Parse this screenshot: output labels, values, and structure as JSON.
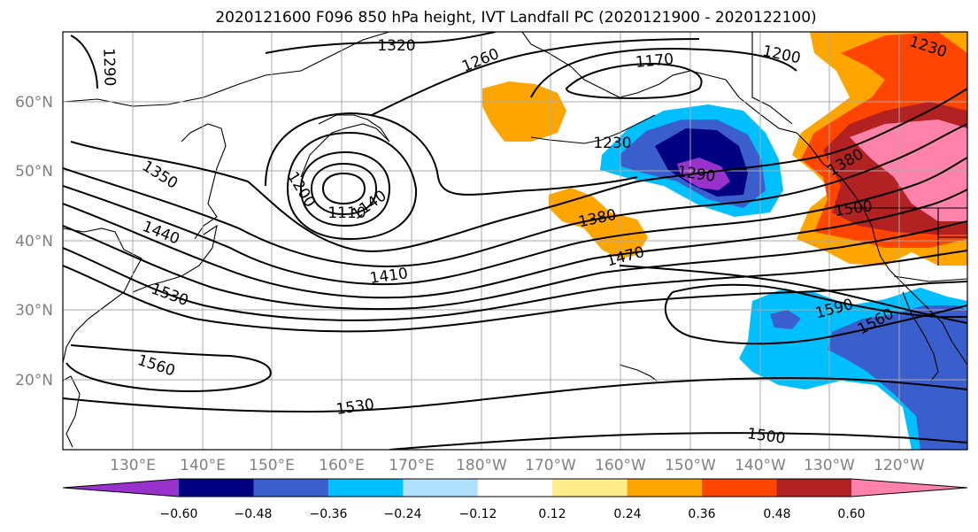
{
  "title": "2020121600 F096 850 hPa height, IVT Landfall PC (2020121900 - 2020122100)",
  "lat_labels": [
    "60°N",
    "50°N",
    "40°N",
    "30°N",
    "20°N"
  ],
  "lon_labels": [
    "130°E",
    "140°E",
    "150°E",
    "160°E",
    "170°E",
    "180°W",
    "170°W",
    "160°W",
    "150°W",
    "140°W",
    "130°W",
    "120°W"
  ],
  "contour_labels": [
    "1290",
    "1320",
    "1260",
    "1170",
    "1200",
    "1230",
    "1350",
    "1200",
    "1110",
    "1140",
    "1230",
    "1290",
    "1380",
    "1440",
    "1380",
    "1470",
    "1500",
    "1410",
    "1530",
    "1590",
    "1560",
    "1560",
    "1530",
    "1500"
  ],
  "colorbar": {
    "ticks": [
      "−0.60",
      "−0.48",
      "−0.36",
      "−0.24",
      "−0.12",
      "0.12",
      "0.24",
      "0.36",
      "0.48",
      "0.60"
    ],
    "colors": [
      "#9932cc",
      "#000080",
      "#3a5fcd",
      "#00bfff",
      "#b0e2ff",
      "#ffffff",
      "#ffec8b",
      "#ffa500",
      "#ff4500",
      "#b22222",
      "#ff82ab"
    ]
  },
  "colors": {
    "frame": "#000000",
    "gridline": "#a9a9a9",
    "coast": "#000000",
    "contour": "#000000",
    "tick_text": "#808080"
  }
}
